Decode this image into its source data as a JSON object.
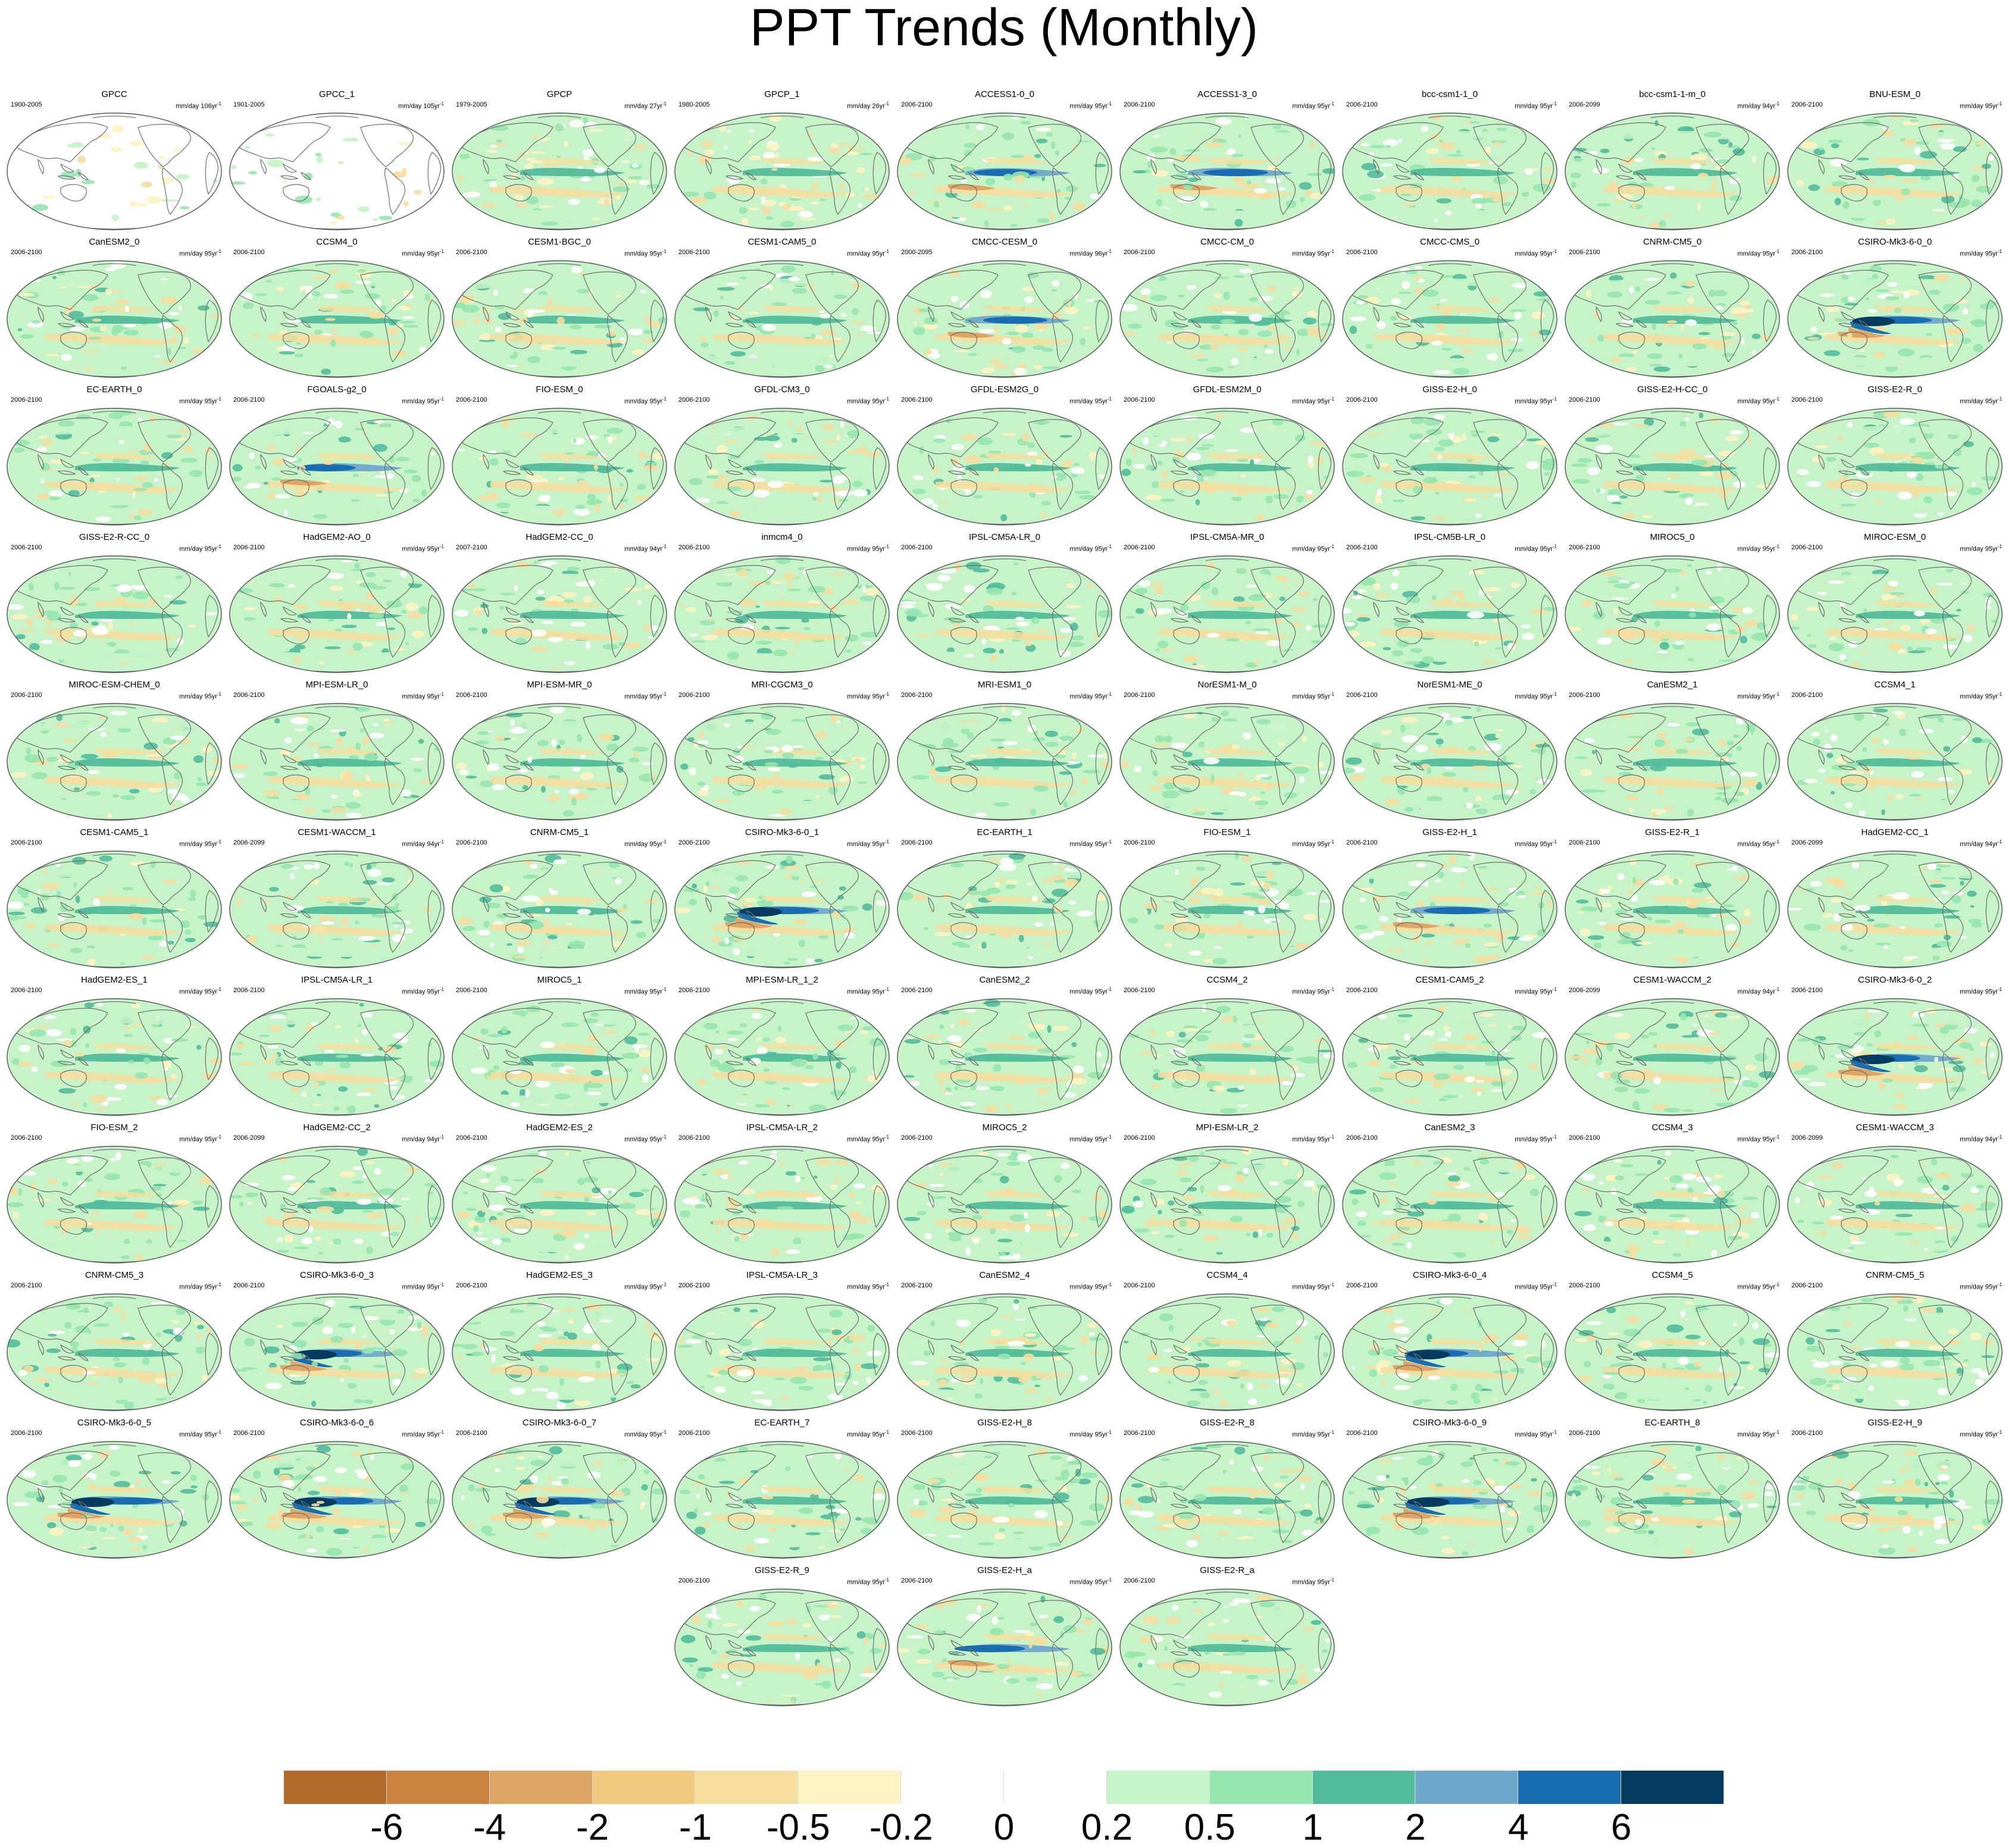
{
  "title": "PPT Trends (Monthly)",
  "units_label": "mm/day",
  "chart_data": {
    "type": "map-grid",
    "title": "PPT Trends (Monthly)",
    "variable": "precipitation trend",
    "units": "mm/day",
    "projection": "Robinson (global, Pacific-centered)",
    "grid": false,
    "legend": "horizontal colorbar at bottom",
    "colorbar": {
      "levels": [
        "-6",
        "-4",
        "-2",
        "-1",
        "-0.5",
        "-0.2",
        "0",
        "0.2",
        "0.5",
        "1",
        "2",
        "4",
        "6"
      ],
      "colors": [
        "#b36a2a",
        "#cc8340",
        "#dea564",
        "#f0c87e",
        "#f5de9f",
        "#fdf3c2",
        "#ffffff",
        "#ffffff",
        "#c6f3c8",
        "#96e6b0",
        "#52bb9a",
        "#6fa8cb",
        "#1a6cb0",
        "#063a5e"
      ]
    },
    "panels": [
      {
        "name": "GPCC",
        "years": "1900-2005",
        "span": "106yr",
        "style": "obs"
      },
      {
        "name": "GPCC_1",
        "years": "1901-2005",
        "span": "105yr",
        "style": "obs"
      },
      {
        "name": "GPCP",
        "years": "1979-2005",
        "span": "27yr",
        "style": "weak"
      },
      {
        "name": "GPCP_1",
        "years": "1980-2005",
        "span": "26yr",
        "style": "weak"
      },
      {
        "name": "ACCESS1-0_0",
        "years": "2006-2100",
        "span": "95yr",
        "style": "strong"
      },
      {
        "name": "ACCESS1-3_0",
        "years": "2006-2100",
        "span": "95yr",
        "style": "strong"
      },
      {
        "name": "bcc-csm1-1_0",
        "years": "2006-2100",
        "span": "95yr",
        "style": "model"
      },
      {
        "name": "bcc-csm1-1-m_0",
        "years": "2006-2099",
        "span": "94yr",
        "style": "model"
      },
      {
        "name": "BNU-ESM_0",
        "years": "2006-2100",
        "span": "95yr",
        "style": "model"
      },
      {
        "name": "CanESM2_0",
        "years": "2006-2100",
        "span": "95yr",
        "style": "model"
      },
      {
        "name": "CCSM4_0",
        "years": "2006-2100",
        "span": "95yr",
        "style": "model"
      },
      {
        "name": "CESM1-BGC_0",
        "years": "2006-2100",
        "span": "95yr",
        "style": "model"
      },
      {
        "name": "CESM1-CAM5_0",
        "years": "2006-2100",
        "span": "95yr",
        "style": "model"
      },
      {
        "name": "CMCC-CESM_0",
        "years": "2000-2095",
        "span": "96yr",
        "style": "strong"
      },
      {
        "name": "CMCC-CM_0",
        "years": "2006-2100",
        "span": "95yr",
        "style": "model"
      },
      {
        "name": "CMCC-CMS_0",
        "years": "2006-2100",
        "span": "95yr",
        "style": "model"
      },
      {
        "name": "CNRM-CM5_0",
        "years": "2006-2100",
        "span": "95yr",
        "style": "model"
      },
      {
        "name": "CSIRO-Mk3-6-0_0",
        "years": "2006-2100",
        "span": "95yr",
        "style": "csiro"
      },
      {
        "name": "EC-EARTH_0",
        "years": "2006-2100",
        "span": "95yr",
        "style": "model"
      },
      {
        "name": "FGOALS-g2_0",
        "years": "2006-2100",
        "span": "95yr",
        "style": "strong"
      },
      {
        "name": "FIO-ESM_0",
        "years": "2006-2100",
        "span": "95yr",
        "style": "model"
      },
      {
        "name": "GFDL-CM3_0",
        "years": "2006-2100",
        "span": "95yr",
        "style": "model"
      },
      {
        "name": "GFDL-ESM2G_0",
        "years": "2006-2100",
        "span": "95yr",
        "style": "model"
      },
      {
        "name": "GFDL-ESM2M_0",
        "years": "2006-2100",
        "span": "95yr",
        "style": "model"
      },
      {
        "name": "GISS-E2-H_0",
        "years": "2006-2100",
        "span": "95yr",
        "style": "model"
      },
      {
        "name": "GISS-E2-H-CC_0",
        "years": "2006-2100",
        "span": "95yr",
        "style": "model"
      },
      {
        "name": "GISS-E2-R_0",
        "years": "2006-2100",
        "span": "95yr",
        "style": "model"
      },
      {
        "name": "GISS-E2-R-CC_0",
        "years": "2006-2100",
        "span": "95yr",
        "style": "model"
      },
      {
        "name": "HadGEM2-AO_0",
        "years": "2006-2100",
        "span": "95yr",
        "style": "model"
      },
      {
        "name": "HadGEM2-CC_0",
        "years": "2007-2100",
        "span": "94yr",
        "style": "model"
      },
      {
        "name": "inmcm4_0",
        "years": "2006-2100",
        "span": "95yr",
        "style": "model"
      },
      {
        "name": "IPSL-CM5A-LR_0",
        "years": "2006-2100",
        "span": "95yr",
        "style": "model"
      },
      {
        "name": "IPSL-CM5A-MR_0",
        "years": "2006-2100",
        "span": "95yr",
        "style": "model"
      },
      {
        "name": "IPSL-CM5B-LR_0",
        "years": "2006-2100",
        "span": "95yr",
        "style": "model"
      },
      {
        "name": "MIROC5_0",
        "years": "2006-2100",
        "span": "95yr",
        "style": "model"
      },
      {
        "name": "MIROC-ESM_0",
        "years": "2006-2100",
        "span": "95yr",
        "style": "model"
      },
      {
        "name": "MIROC-ESM-CHEM_0",
        "years": "2006-2100",
        "span": "95yr",
        "style": "model"
      },
      {
        "name": "MPI-ESM-LR_0",
        "years": "2006-2100",
        "span": "95yr",
        "style": "model"
      },
      {
        "name": "MPI-ESM-MR_0",
        "years": "2006-2100",
        "span": "95yr",
        "style": "model"
      },
      {
        "name": "MRI-CGCM3_0",
        "years": "2006-2100",
        "span": "95yr",
        "style": "model"
      },
      {
        "name": "MRI-ESM1_0",
        "years": "2006-2100",
        "span": "95yr",
        "style": "model"
      },
      {
        "name": "NorESM1-M_0",
        "years": "2006-2100",
        "span": "95yr",
        "style": "model"
      },
      {
        "name": "NorESM1-ME_0",
        "years": "2006-2100",
        "span": "95yr",
        "style": "model"
      },
      {
        "name": "CanESM2_1",
        "years": "2006-2100",
        "span": "95yr",
        "style": "model"
      },
      {
        "name": "CCSM4_1",
        "years": "2006-2100",
        "span": "95yr",
        "style": "model"
      },
      {
        "name": "CESM1-CAM5_1",
        "years": "2006-2100",
        "span": "95yr",
        "style": "model"
      },
      {
        "name": "CESM1-WACCM_1",
        "years": "2006-2099",
        "span": "94yr",
        "style": "model"
      },
      {
        "name": "CNRM-CM5_1",
        "years": "2006-2100",
        "span": "95yr",
        "style": "model"
      },
      {
        "name": "CSIRO-Mk3-6-0_1",
        "years": "2006-2100",
        "span": "95yr",
        "style": "csiro"
      },
      {
        "name": "EC-EARTH_1",
        "years": "2006-2100",
        "span": "95yr",
        "style": "model"
      },
      {
        "name": "FIO-ESM_1",
        "years": "2006-2100",
        "span": "95yr",
        "style": "model"
      },
      {
        "name": "GISS-E2-H_1",
        "years": "2006-2100",
        "span": "95yr",
        "style": "strong"
      },
      {
        "name": "GISS-E2-R_1",
        "years": "2006-2100",
        "span": "95yr",
        "style": "model"
      },
      {
        "name": "HadGEM2-CC_1",
        "years": "2006-2099",
        "span": "94yr",
        "style": "model"
      },
      {
        "name": "HadGEM2-ES_1",
        "years": "2006-2100",
        "span": "95yr",
        "style": "model"
      },
      {
        "name": "IPSL-CM5A-LR_1",
        "years": "2006-2100",
        "span": "95yr",
        "style": "model"
      },
      {
        "name": "MIROC5_1",
        "years": "2006-2100",
        "span": "95yr",
        "style": "model"
      },
      {
        "name": "MPI-ESM-LR_1_2",
        "years": "2006-2100",
        "span": "95yr",
        "style": "model"
      },
      {
        "name": "CanESM2_2",
        "years": "2006-2100",
        "span": "95yr",
        "style": "model"
      },
      {
        "name": "CCSM4_2",
        "years": "2006-2100",
        "span": "95yr",
        "style": "model"
      },
      {
        "name": "CESM1-CAM5_2",
        "years": "2006-2100",
        "span": "95yr",
        "style": "model"
      },
      {
        "name": "CESM1-WACCM_2",
        "years": "2006-2099",
        "span": "94yr",
        "style": "model"
      },
      {
        "name": "CSIRO-Mk3-6-0_2",
        "years": "2006-2100",
        "span": "95yr",
        "style": "csiro"
      },
      {
        "name": "FIO-ESM_2",
        "years": "2006-2100",
        "span": "95yr",
        "style": "model"
      },
      {
        "name": "HadGEM2-CC_2",
        "years": "2006-2099",
        "span": "94yr",
        "style": "model"
      },
      {
        "name": "HadGEM2-ES_2",
        "years": "2006-2100",
        "span": "95yr",
        "style": "model"
      },
      {
        "name": "IPSL-CM5A-LR_2",
        "years": "2006-2100",
        "span": "95yr",
        "style": "model"
      },
      {
        "name": "MIROC5_2",
        "years": "2006-2100",
        "span": "95yr",
        "style": "model"
      },
      {
        "name": "MPI-ESM-LR_2",
        "years": "2006-2100",
        "span": "95yr",
        "style": "model"
      },
      {
        "name": "CanESM2_3",
        "years": "2006-2100",
        "span": "95yr",
        "style": "model"
      },
      {
        "name": "CCSM4_3",
        "years": "2006-2100",
        "span": "95yr",
        "style": "model"
      },
      {
        "name": "CESM1-WACCM_3",
        "years": "2006-2099",
        "span": "94yr",
        "style": "model"
      },
      {
        "name": "CNRM-CM5_3",
        "years": "2006-2100",
        "span": "95yr",
        "style": "model"
      },
      {
        "name": "CSIRO-Mk3-6-0_3",
        "years": "2006-2100",
        "span": "95yr",
        "style": "csiro"
      },
      {
        "name": "HadGEM2-ES_3",
        "years": "2006-2100",
        "span": "95yr",
        "style": "model"
      },
      {
        "name": "IPSL-CM5A-LR_3",
        "years": "2006-2100",
        "span": "95yr",
        "style": "model"
      },
      {
        "name": "CanESM2_4",
        "years": "2006-2100",
        "span": "95yr",
        "style": "model"
      },
      {
        "name": "CCSM4_4",
        "years": "2006-2100",
        "span": "95yr",
        "style": "model"
      },
      {
        "name": "CSIRO-Mk3-6-0_4",
        "years": "2006-2100",
        "span": "95yr",
        "style": "csiro"
      },
      {
        "name": "CCSM4_5",
        "years": "2006-2100",
        "span": "95yr",
        "style": "model"
      },
      {
        "name": "CNRM-CM5_5",
        "years": "2006-2100",
        "span": "95yr",
        "style": "model"
      },
      {
        "name": "CSIRO-Mk3-6-0_5",
        "years": "2006-2100",
        "span": "95yr",
        "style": "csiro"
      },
      {
        "name": "CSIRO-Mk3-6-0_6",
        "years": "2006-2100",
        "span": "95yr",
        "style": "csiro"
      },
      {
        "name": "CSIRO-Mk3-6-0_7",
        "years": "2006-2100",
        "span": "95yr",
        "style": "csiro"
      },
      {
        "name": "EC-EARTH_7",
        "years": "2006-2100",
        "span": "95yr",
        "style": "model"
      },
      {
        "name": "GISS-E2-H_8",
        "years": "2006-2100",
        "span": "95yr",
        "style": "model"
      },
      {
        "name": "GISS-E2-R_8",
        "years": "2006-2100",
        "span": "95yr",
        "style": "model"
      },
      {
        "name": "CSIRO-Mk3-6-0_9",
        "years": "2006-2100",
        "span": "95yr",
        "style": "csiro"
      },
      {
        "name": "EC-EARTH_8",
        "years": "2006-2100",
        "span": "95yr",
        "style": "model"
      },
      {
        "name": "GISS-E2-H_9",
        "years": "2006-2100",
        "span": "95yr",
        "style": "model"
      },
      {
        "name": "GISS-E2-R_9",
        "years": "2006-2100",
        "span": "95yr",
        "style": "model"
      },
      {
        "name": "GISS-E2-H_a",
        "years": "2006-2100",
        "span": "95yr",
        "style": "strong"
      },
      {
        "name": "GISS-E2-R_a",
        "years": "2006-2100",
        "span": "95yr",
        "style": "model"
      }
    ]
  }
}
